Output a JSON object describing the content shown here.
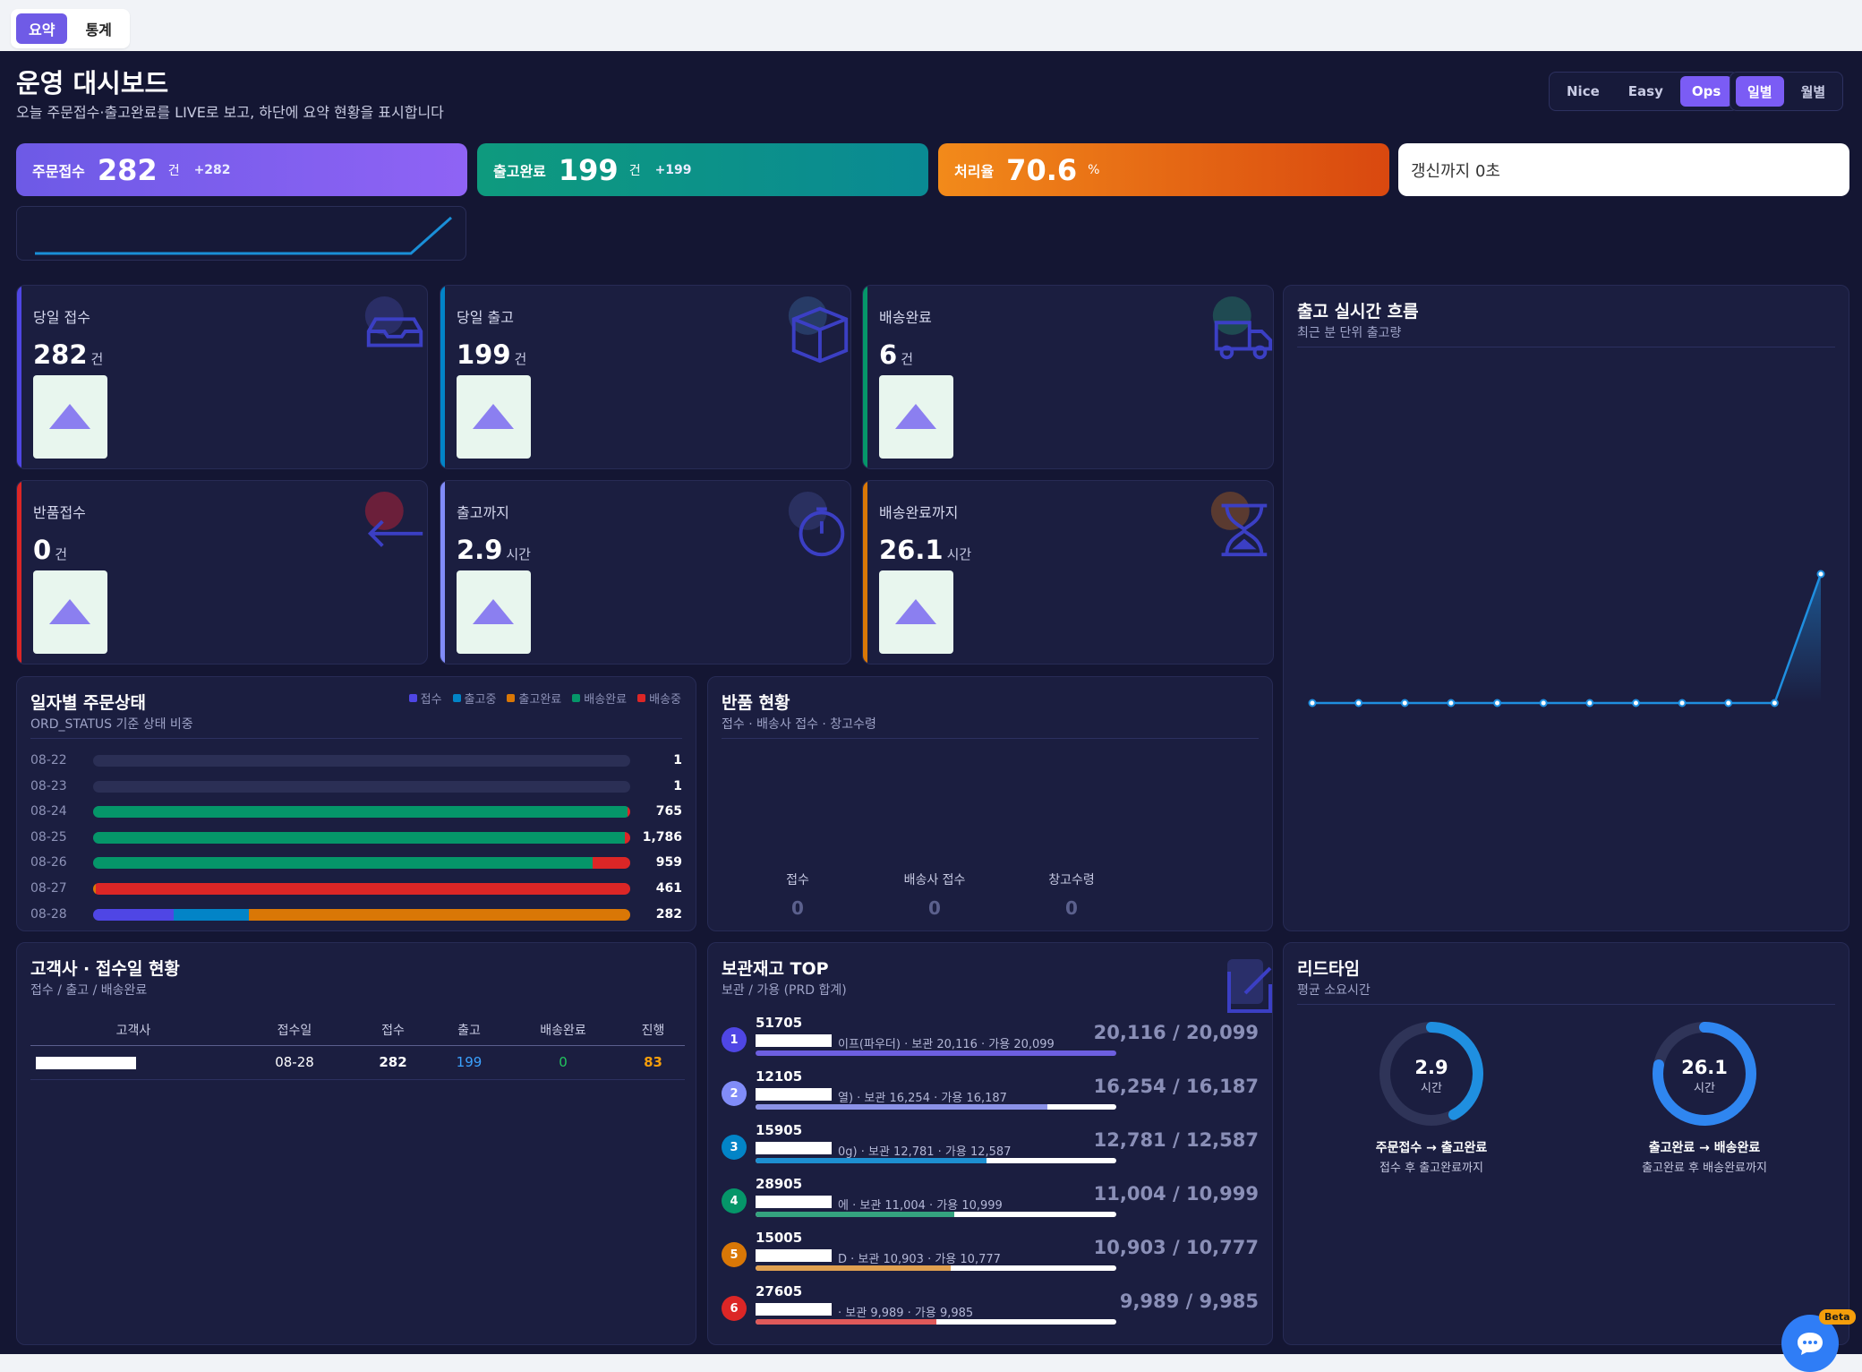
{
  "tabs": [
    "요약",
    "통계"
  ],
  "header": {
    "title": "운영 대시보드",
    "subtitle": "오늘 주문접수·출고완료를 LIVE로 보고, 하단에 요약 현황을 표시합니다"
  },
  "theme_toggle": [
    "Nice",
    "Easy",
    "Ops"
  ],
  "period_toggle": [
    "일별",
    "월별"
  ],
  "kpis": [
    {
      "label": "주문접수",
      "value": "282",
      "unit": "건",
      "delta": "+282",
      "color": "#7a5cf5"
    },
    {
      "label": "출고완료",
      "value": "199",
      "unit": "건",
      "delta": "+199",
      "color": "#0d9488"
    },
    {
      "label": "처리율",
      "value": "70.6",
      "unit": "%",
      "delta": "",
      "color": "#ea580c"
    }
  ],
  "refresh": {
    "label": "갱신까지 0초"
  },
  "stats": [
    {
      "label": "당일 접수",
      "value": "282",
      "unit": "건",
      "icon": "inbox-icon",
      "accent": "#4f46e5"
    },
    {
      "label": "당일 출고",
      "value": "199",
      "unit": "건",
      "icon": "box-icon",
      "accent": "#0284c7"
    },
    {
      "label": "배송완료",
      "value": "6",
      "unit": "건",
      "icon": "truck-icon",
      "accent": "#059669"
    },
    {
      "label": "반품접수",
      "value": "0",
      "unit": "건",
      "icon": "return-arrow-icon",
      "accent": "#dc2626"
    },
    {
      "label": "출고까지",
      "value": "2.9",
      "unit": "시간",
      "icon": "timer-icon",
      "accent": "#818cf8"
    },
    {
      "label": "배송완료까지",
      "value": "26.1",
      "unit": "시간",
      "icon": "hourglass-icon",
      "accent": "#d97706"
    }
  ],
  "realtime": {
    "title": "출고 실시간 흐름",
    "subtitle": "최근 분 단위 출고량"
  },
  "daily_status": {
    "title": "일자별 주문상태",
    "subtitle": "ORD_STATUS 기준 상태 비중",
    "legend": [
      {
        "name": "접수",
        "color": "#4f46e5"
      },
      {
        "name": "출고중",
        "color": "#0284c7"
      },
      {
        "name": "출고완료",
        "color": "#d97706"
      },
      {
        "name": "배송완료",
        "color": "#059669"
      },
      {
        "name": "배송중",
        "color": "#dc2626"
      }
    ],
    "rows": [
      {
        "date": "08-22",
        "count": "1",
        "segments": []
      },
      {
        "date": "08-23",
        "count": "1",
        "segments": []
      },
      {
        "date": "08-24",
        "count": "765",
        "segments": [
          {
            "status": "배송완료",
            "share": 99.5
          },
          {
            "status": "배송중",
            "share": 0.5
          }
        ]
      },
      {
        "date": "08-25",
        "count": "1,786",
        "segments": [
          {
            "status": "배송완료",
            "share": 99
          },
          {
            "status": "배송중",
            "share": 1
          }
        ]
      },
      {
        "date": "08-26",
        "count": "959",
        "segments": [
          {
            "status": "배송완료",
            "share": 93
          },
          {
            "status": "배송중",
            "share": 7
          }
        ]
      },
      {
        "date": "08-27",
        "count": "461",
        "segments": [
          {
            "status": "출고완료",
            "share": 0.5
          },
          {
            "status": "배송중",
            "share": 99.5
          }
        ]
      },
      {
        "date": "08-28",
        "count": "282",
        "segments": [
          {
            "status": "접수",
            "share": 15
          },
          {
            "status": "출고중",
            "share": 14
          },
          {
            "status": "출고완료",
            "share": 71
          }
        ]
      }
    ]
  },
  "returns": {
    "title": "반품 현황",
    "subtitle": "접수 · 배송사 접수 · 창고수령",
    "items": [
      {
        "label": "접수",
        "value": "0"
      },
      {
        "label": "배송사 접수",
        "value": "0"
      },
      {
        "label": "창고수령",
        "value": "0"
      }
    ]
  },
  "customers": {
    "title": "고객사 · 접수일 현황",
    "subtitle": "접수 / 출고 / 배송완료",
    "columns": [
      "고객사",
      "접수일",
      "접수",
      "출고",
      "배송완료",
      "진행"
    ],
    "rows": [
      {
        "date": "08-28",
        "received": "282",
        "shipped": "199",
        "delivered": "0",
        "progress": "83"
      }
    ]
  },
  "stock": {
    "title": "보관재고 TOP",
    "subtitle": "보관 / 가용 (PRD 합계)",
    "items": [
      {
        "rank": "1",
        "code": "51705",
        "desc": "이프(파우더) · 보관 20,116 · 가용 20,099",
        "value": "20,116 / 20,099",
        "share": 100,
        "color": "#6d5fe0",
        "badge": "#4f46e5"
      },
      {
        "rank": "2",
        "code": "12105",
        "desc": "열) · 보관 16,254 · 가용 16,187",
        "value": "16,254 / 16,187",
        "share": 81,
        "color": "#8b92e8",
        "badge": "#818cf8"
      },
      {
        "rank": "3",
        "code": "15905",
        "desc": "0g) · 보관 12,781 · 가용 12,587",
        "value": "12,781 / 12,587",
        "share": 64,
        "color": "#1d8fd1",
        "badge": "#0284c7"
      },
      {
        "rank": "4",
        "code": "28905",
        "desc": "에 · 보관 11,004 · 가용 10,999",
        "value": "11,004 / 10,999",
        "share": 55,
        "color": "#34a37f",
        "badge": "#059669"
      },
      {
        "rank": "5",
        "code": "15005",
        "desc": "D · 보관 10,903 · 가용 10,777",
        "value": "10,903 / 10,777",
        "share": 54,
        "color": "#e0a050",
        "badge": "#d97706"
      },
      {
        "rank": "6",
        "code": "27605",
        "desc": "· 보관 9,989 · 가용 9,985",
        "value": "9,989 / 9,985",
        "share": 50,
        "color": "#e05a5a",
        "badge": "#dc2626"
      }
    ]
  },
  "leadtime": {
    "title": "리드타임",
    "subtitle": "평균 소요시간",
    "items": [
      {
        "value": "2.9",
        "unit": "시간",
        "label": "주문접수 → 출고완료",
        "sub": "접수 후 출고완료까지",
        "ratio": 0.42
      },
      {
        "value": "26.1",
        "unit": "시간",
        "label": "출고완료 → 배송완료",
        "sub": "출고완료 후 배송완료까지",
        "ratio": 0.78
      }
    ]
  },
  "chat": {
    "badge": "Beta"
  },
  "chart_data": {
    "type": "line",
    "x": [
      "1",
      "2",
      "3",
      "4",
      "5",
      "6",
      "7",
      "8",
      "9",
      "10",
      "11",
      "12"
    ],
    "series": [
      {
        "values": [
          0,
          0,
          0,
          0,
          0,
          0,
          0,
          0,
          0,
          0,
          0,
          1
        ]
      }
    ],
    "ylim": [
      0,
      1
    ]
  }
}
